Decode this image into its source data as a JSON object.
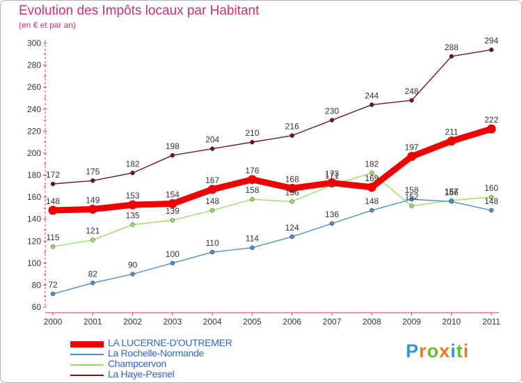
{
  "chart_data": {
    "type": "line",
    "title": "Evolution des Impôts locaux par Habitant",
    "subtitle": "(en € et par an)",
    "x": [
      "2000",
      "2001",
      "2002",
      "2003",
      "2004",
      "2005",
      "2006",
      "2007",
      "2008",
      "2009",
      "2010",
      "2011"
    ],
    "ylim": [
      60,
      300
    ],
    "yticks": [
      60,
      80,
      100,
      120,
      140,
      160,
      180,
      200,
      220,
      240,
      260,
      280,
      300
    ],
    "grid": false,
    "legend_position": "bottom-left",
    "series": [
      {
        "name": "La Haye-Pesnel",
        "color": "#6b1a1a",
        "values": [
          172,
          175,
          182,
          198,
          204,
          210,
          216,
          230,
          244,
          248,
          288,
          294
        ],
        "labels": [
          "172",
          "175",
          "182",
          "198",
          "204",
          "210",
          "216",
          "230",
          "244",
          "248",
          "288",
          "294"
        ]
      },
      {
        "name": "Champcervon",
        "color": "#99dd66",
        "values": [
          115,
          121,
          135,
          139,
          148,
          158,
          156,
          171,
          182,
          152,
          157,
          160
        ],
        "labels": [
          "115",
          "121",
          "135",
          "139",
          "148",
          "158",
          "156",
          "171",
          "182",
          "152",
          "157",
          "160"
        ]
      },
      {
        "name": "La Rochelle-Normande",
        "color": "#4a8fcc",
        "values": [
          72,
          82,
          90,
          100,
          110,
          114,
          124,
          136,
          148,
          158,
          156,
          148
        ],
        "labels": [
          "72",
          "82",
          "90",
          "100",
          "110",
          "114",
          "124",
          "136",
          "148",
          "158",
          "156",
          "148"
        ]
      },
      {
        "name": "LA LUCERNE-D'OUTREMER",
        "color": "#ee0000",
        "values": [
          148,
          149,
          153,
          154,
          167,
          176,
          168,
          173,
          169,
          197,
          211,
          222
        ],
        "labels": [
          "148",
          "149",
          "153",
          "154",
          "167",
          "176",
          "168",
          "173",
          "169",
          "197",
          "211",
          "222"
        ]
      }
    ],
    "legend_order": [
      "LA LUCERNE-D'OUTREMER",
      "La Rochelle-Normande",
      "Champcervon",
      "La Haye-Pesnel"
    ]
  },
  "logo": {
    "text": "Proxiti",
    "letters": [
      "P",
      "r",
      "o",
      "x",
      "i",
      "t",
      "i"
    ],
    "colors": [
      "#3399cc",
      "#ee7722",
      "#66bb33",
      "#ee7722",
      "#3399cc",
      "#66bb33",
      "#ee7722"
    ]
  }
}
